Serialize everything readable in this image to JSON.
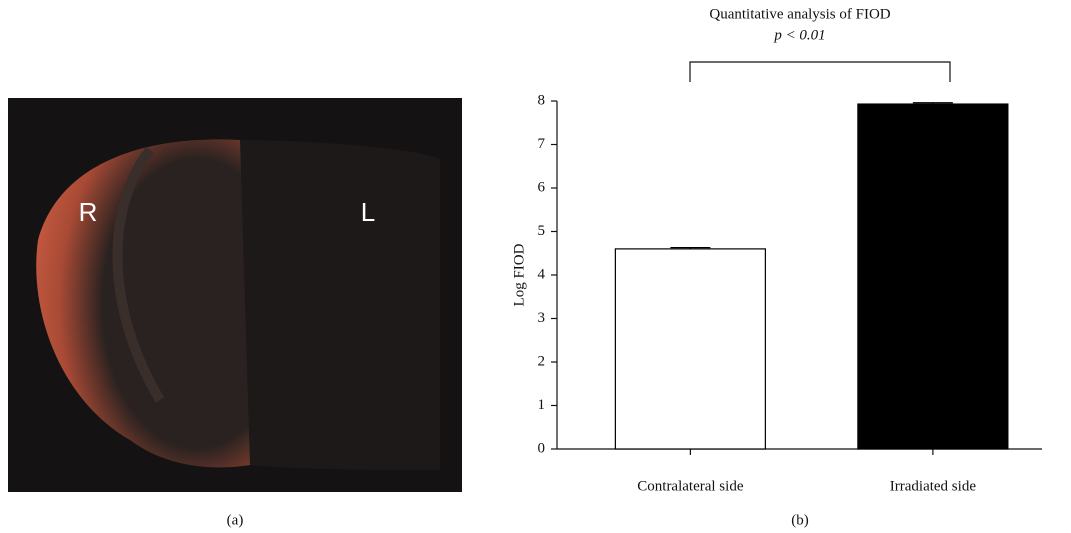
{
  "image_panel": {
    "labels": [
      "R",
      "L"
    ],
    "caption": "(a)"
  },
  "chart_data": {
    "type": "bar",
    "title": "Quantitative analysis of FIOD",
    "annotation": "p < 0.01",
    "ylabel": "Log FIOD",
    "caption": "(b)",
    "categories": [
      "Contralateral side",
      "Irradiated side"
    ],
    "values": [
      4.6,
      7.93
    ],
    "errors": [
      0.03,
      0.03
    ],
    "colors": [
      "#ffffff",
      "#000000"
    ],
    "ylim": [
      0,
      8
    ],
    "yticks": [
      0,
      1,
      2,
      3,
      4,
      5,
      6,
      7,
      8
    ],
    "grid": false
  }
}
